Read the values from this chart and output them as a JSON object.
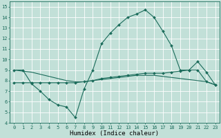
{
  "xlabel": "Humidex (Indice chaleur)",
  "xlim": [
    -0.5,
    23.5
  ],
  "ylim": [
    4,
    15.5
  ],
  "yticks": [
    4,
    5,
    6,
    7,
    8,
    9,
    10,
    11,
    12,
    13,
    14,
    15
  ],
  "xticks": [
    0,
    1,
    2,
    3,
    4,
    5,
    6,
    7,
    8,
    9,
    10,
    11,
    12,
    13,
    14,
    15,
    16,
    17,
    18,
    19,
    20,
    21,
    22,
    23
  ],
  "bg_color": "#c2e0d8",
  "line_color": "#1a6b5a",
  "grid_color": "#ffffff",
  "series1_x": [
    0,
    1,
    2,
    3,
    4,
    5,
    6,
    7,
    8,
    9,
    10,
    11,
    12,
    13,
    14,
    15,
    16,
    17,
    18,
    19,
    20,
    21,
    22,
    23
  ],
  "series1_y": [
    9.0,
    9.0,
    7.7,
    7.0,
    6.2,
    5.7,
    5.5,
    4.5,
    7.2,
    9.0,
    11.5,
    12.5,
    13.3,
    14.0,
    14.3,
    14.7,
    14.0,
    12.7,
    11.3,
    9.0,
    9.0,
    9.8,
    8.8,
    7.6
  ],
  "series2_x": [
    0,
    1,
    2,
    3,
    4,
    5,
    6,
    7,
    8,
    9,
    10,
    11,
    12,
    13,
    14,
    15,
    16,
    17,
    18,
    19,
    20,
    21,
    22,
    23
  ],
  "series2_y": [
    7.8,
    7.8,
    7.8,
    7.8,
    7.8,
    7.8,
    7.8,
    7.8,
    7.9,
    8.0,
    8.2,
    8.3,
    8.4,
    8.5,
    8.6,
    8.7,
    8.7,
    8.7,
    8.8,
    8.9,
    9.0,
    9.0,
    7.9,
    7.6
  ],
  "series3_x": [
    0,
    1,
    2,
    3,
    4,
    5,
    6,
    7,
    8,
    9,
    10,
    11,
    12,
    13,
    14,
    15,
    16,
    17,
    18,
    19,
    20,
    21,
    22,
    23
  ],
  "series3_y": [
    9.0,
    8.9,
    8.8,
    8.6,
    8.4,
    8.2,
    8.0,
    7.9,
    7.9,
    8.0,
    8.1,
    8.2,
    8.3,
    8.4,
    8.5,
    8.5,
    8.5,
    8.4,
    8.3,
    8.2,
    8.1,
    8.0,
    7.9,
    7.6
  ],
  "tick_fontsize": 5.0,
  "xlabel_fontsize": 6.5,
  "marker_size": 2.0,
  "line_width": 0.8
}
